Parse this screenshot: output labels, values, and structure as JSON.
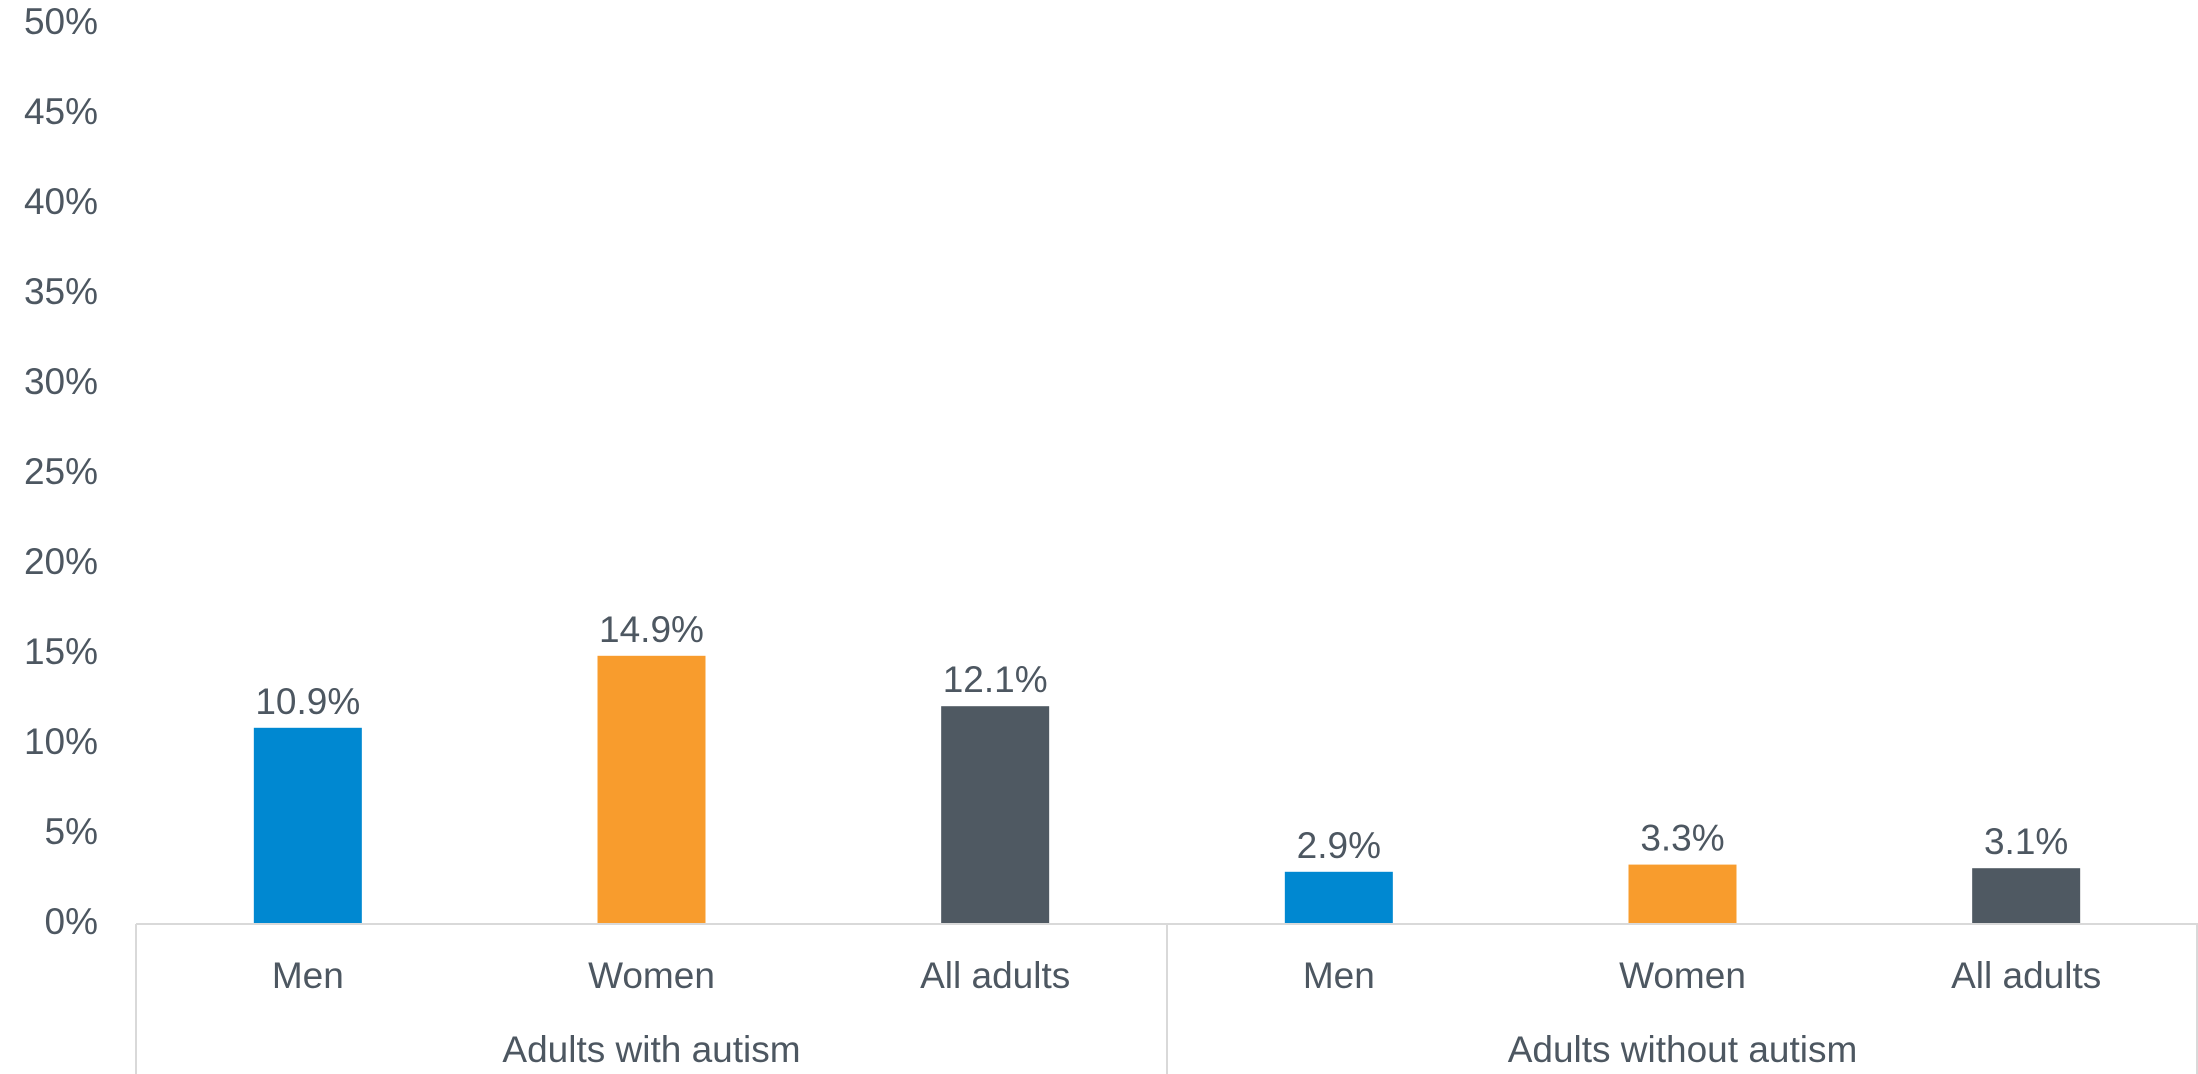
{
  "chart_data": {
    "type": "bar",
    "title": "",
    "xlabel": "",
    "ylabel": "",
    "ylim": [
      0,
      50
    ],
    "y_ticks": [
      0,
      5,
      10,
      15,
      20,
      25,
      30,
      35,
      40,
      45,
      50
    ],
    "y_tick_labels": [
      "0%",
      "5%",
      "10%",
      "15%",
      "20%",
      "25%",
      "30%",
      "35%",
      "40%",
      "45%",
      "50%"
    ],
    "grid": false,
    "legend": "none",
    "groups": [
      {
        "label": "Adults with autism",
        "bars": [
          {
            "category": "Men",
            "value": 10.9,
            "label": "10.9%",
            "color": "#0088d1"
          },
          {
            "category": "Women",
            "value": 14.9,
            "label": "14.9%",
            "color": "#f89c2d"
          },
          {
            "category": "All adults",
            "value": 12.1,
            "label": "12.1%",
            "color": "#4f5962"
          }
        ]
      },
      {
        "label": "Adults without autism",
        "bars": [
          {
            "category": "Men",
            "value": 2.9,
            "label": "2.9%",
            "color": "#0088d1"
          },
          {
            "category": "Women",
            "value": 3.3,
            "label": "3.3%",
            "color": "#f89c2d"
          },
          {
            "category": "All adults",
            "value": 3.1,
            "label": "3.1%",
            "color": "#4f5962"
          }
        ]
      }
    ]
  }
}
